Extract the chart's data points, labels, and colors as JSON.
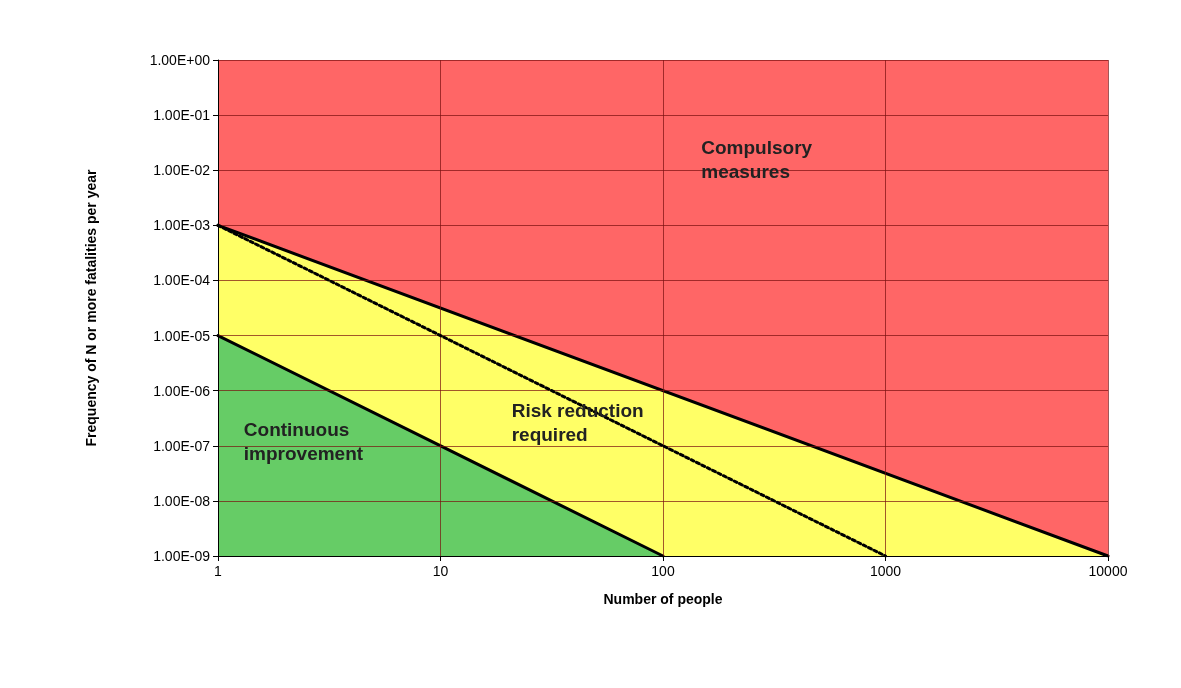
{
  "chart_data": {
    "type": "line",
    "xlabel": "Number of people",
    "ylabel": "Frequency of N or more fatalities per year",
    "log": "xy",
    "grid": true,
    "marker": "none",
    "xlim": [
      1,
      10000
    ],
    "xticks": [
      1,
      10,
      100,
      1000,
      10000
    ],
    "ylim": [
      1e-09,
      1
    ],
    "yticks": [
      {
        "value": 1,
        "label": "1.00E+00"
      },
      {
        "value": 0.1,
        "label": "1.00E-01"
      },
      {
        "value": 0.01,
        "label": "1.00E-02"
      },
      {
        "value": 0.001,
        "label": "1.00E-03"
      },
      {
        "value": 0.0001,
        "label": "1.00E-04"
      },
      {
        "value": 1e-05,
        "label": "1.00E-05"
      },
      {
        "value": 1e-06,
        "label": "1.00E-06"
      },
      {
        "value": 1e-07,
        "label": "1.00E-07"
      },
      {
        "value": 1e-08,
        "label": "1.00E-08"
      },
      {
        "value": 1e-09,
        "label": "1.00E-09"
      }
    ],
    "bands": [
      {
        "axis": "y",
        "from": 1e-09,
        "to": 1,
        "color": "#ff6666"
      }
    ],
    "series": [
      {
        "type": "area",
        "color": "#ffff66",
        "x": [
          1,
          10000
        ],
        "values": [
          0.001,
          1e-09
        ]
      },
      {
        "type": "area",
        "color": "#66cc66",
        "x": [
          1,
          100
        ],
        "values": [
          1e-05,
          1e-09
        ]
      },
      {
        "color": "#000000",
        "line_style": "dotted",
        "x": [
          1,
          1000
        ],
        "values": [
          0.001,
          1e-09
        ]
      }
    ],
    "annotations": [
      "Compulsory\nmeasures",
      "Risk reduction\nrequired",
      "Continuous\nimprovement"
    ]
  }
}
